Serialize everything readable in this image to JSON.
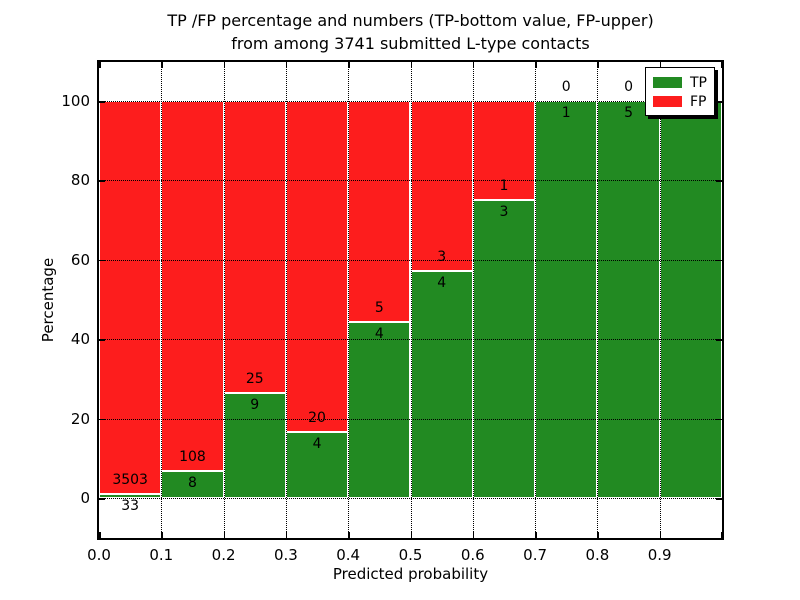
{
  "figure": {
    "title_line1": "TP /FP percentage and numbers (TP-bottom value, FP-upper)",
    "title_line2": "from among 3741 submitted L-type contacts",
    "background_color": "#ffffff"
  },
  "legend": {
    "position": "upper right",
    "items": [
      {
        "label": "TP",
        "color": "#228a22"
      },
      {
        "label": "FP",
        "color": "#fd1d1d"
      }
    ]
  },
  "chart_data": {
    "type": "bar",
    "stacked": true,
    "normalized_to_percent": true,
    "title": "TP /FP percentage and numbers (TP-bottom value, FP-upper)\nfrom among 3741 submitted L-type contacts",
    "xlabel": "Predicted probability",
    "ylabel": "Percentage",
    "total_contacts": 3741,
    "x_range": [
      0.0,
      1.0
    ],
    "bin_width": 0.1,
    "y_range_percent_shown": [
      -10.5,
      109.5
    ],
    "x_tick_labels": [
      "0.0",
      "0.1",
      "0.2",
      "0.3",
      "0.4",
      "0.5",
      "0.6",
      "0.7",
      "0.8",
      "0.9"
    ],
    "y_tick_values": [
      0,
      20,
      40,
      60,
      80,
      100
    ],
    "grid": "dotted black, on",
    "bar_edge_color": "#ffffff",
    "categories": [
      "0.0-0.1",
      "0.1-0.2",
      "0.2-0.3",
      "0.3-0.4",
      "0.4-0.5",
      "0.5-0.6",
      "0.6-0.7",
      "0.7-0.8",
      "0.8-0.9",
      "0.9-1.0"
    ],
    "series": [
      {
        "name": "TP",
        "color": "#228a22",
        "values": [
          33,
          8,
          9,
          4,
          4,
          4,
          3,
          1,
          5,
          5
        ]
      },
      {
        "name": "FP",
        "color": "#fd1d1d",
        "values": [
          3503,
          108,
          25,
          20,
          5,
          3,
          1,
          0,
          0,
          0
        ]
      }
    ],
    "tp_percent_of_bin": [
      0.93,
      6.9,
      26.47,
      16.67,
      44.44,
      57.14,
      75.0,
      100.0,
      100.0,
      100.0
    ],
    "notes": "FP count labels sit just above the TP/FP boundary, TP count labels just below it; the FP=0 and TP=5 labels of the 0.9-1.0 bin are mostly hidden behind the legend"
  }
}
